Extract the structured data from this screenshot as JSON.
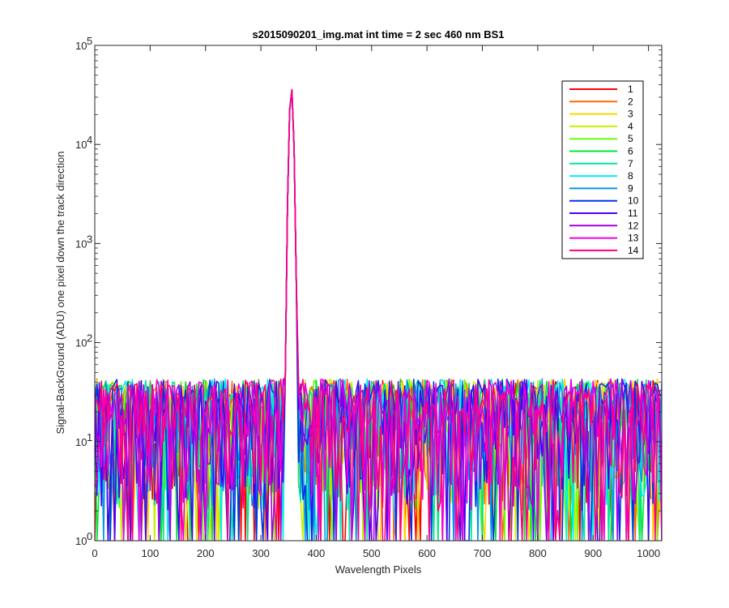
{
  "chart_data": {
    "type": "line",
    "title": "s2015090201_img.mat int time = 2 sec  460 nm BS1",
    "xlabel": "Wavelength Pixels",
    "ylabel": "Signal-BackGround (ADU) one pixel down the track direction",
    "xlim": [
      0,
      1024
    ],
    "ylim": [
      1,
      100000
    ],
    "yscale": "log",
    "grid": false,
    "legend_position": "top-right",
    "x_ticks": [
      0,
      100,
      200,
      300,
      400,
      500,
      600,
      700,
      800,
      900,
      1000
    ],
    "y_ticks": [
      {
        "base": "10",
        "exp": "0",
        "value": 1
      },
      {
        "base": "10",
        "exp": "1",
        "value": 10
      },
      {
        "base": "10",
        "exp": "2",
        "value": 100
      },
      {
        "base": "10",
        "exp": "3",
        "value": 1000
      },
      {
        "base": "10",
        "exp": "4",
        "value": 10000
      },
      {
        "base": "10",
        "exp": "5",
        "value": 100000
      }
    ],
    "noise_floor_range": [
      1,
      45
    ],
    "peak": {
      "x": 355,
      "y": 38000
    },
    "series": [
      {
        "name": "1",
        "color": "#ff0000"
      },
      {
        "name": "2",
        "color": "#ff6a00"
      },
      {
        "name": "3",
        "color": "#ffd400"
      },
      {
        "name": "4",
        "color": "#c8f000"
      },
      {
        "name": "5",
        "color": "#66ff00"
      },
      {
        "name": "6",
        "color": "#00e633"
      },
      {
        "name": "7",
        "color": "#00e699"
      },
      {
        "name": "8",
        "color": "#00f0f0"
      },
      {
        "name": "9",
        "color": "#0099e6"
      },
      {
        "name": "10",
        "color": "#0033e6"
      },
      {
        "name": "11",
        "color": "#4d00f0"
      },
      {
        "name": "12",
        "color": "#a600e6"
      },
      {
        "name": "13",
        "color": "#f000d9"
      },
      {
        "name": "14",
        "color": "#ff0080"
      }
    ]
  }
}
